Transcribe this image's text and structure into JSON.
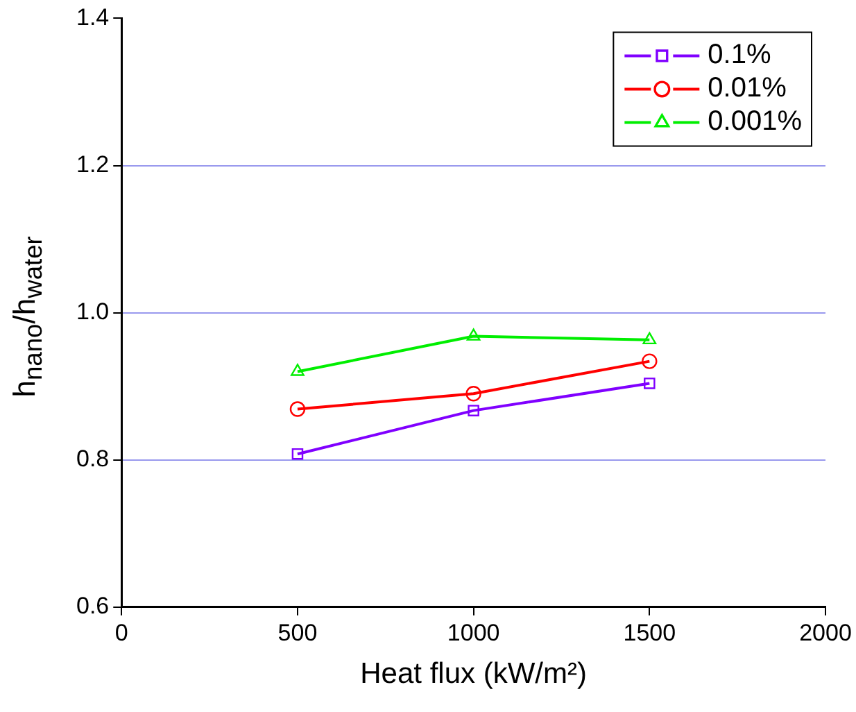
{
  "chart_data": {
    "type": "line",
    "xlabel": "Heat flux (kW/m²)",
    "ylabel": "h$_{nano}$/h$_{water}$",
    "x": [
      500,
      1000,
      1500
    ],
    "series": [
      {
        "name": "0.1%",
        "color": "#8000ff",
        "marker": "square",
        "values": [
          0.808,
          0.867,
          0.904
        ]
      },
      {
        "name": "0.01%",
        "color": "#ff0000",
        "marker": "circle",
        "values": [
          0.869,
          0.89,
          0.934
        ]
      },
      {
        "name": "0.001%",
        "color": "#00ee00",
        "marker": "triangle",
        "values": [
          0.92,
          0.968,
          0.963
        ]
      }
    ],
    "xlim": [
      0,
      2000
    ],
    "xticks": [
      0,
      500,
      1000,
      1500,
      2000
    ],
    "ylim": [
      0.6,
      1.4
    ],
    "yticks": [
      0.6,
      0.8,
      {
        "value": 1,
        "label": "1.0"
      },
      1.2,
      1.4
    ],
    "grid": "y",
    "legend": "top right",
    "line_style": "solid"
  }
}
